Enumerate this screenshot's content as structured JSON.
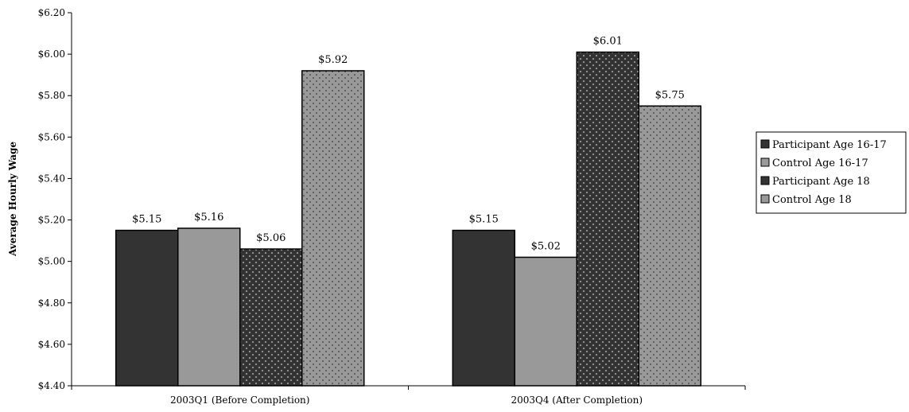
{
  "chart_data": {
    "type": "bar",
    "title": "",
    "xlabel": "",
    "ylabel": "Average Hourly Wage",
    "ylim": [
      4.4,
      6.2
    ],
    "ytick_step": 0.2,
    "ytick_labels": [
      "$4.40",
      "$4.60",
      "$4.80",
      "$5.00",
      "$5.20",
      "$5.40",
      "$5.60",
      "$5.80",
      "$6.00",
      "$6.20"
    ],
    "categories": [
      "2003Q1 (Before Completion)",
      "2003Q4 (After Completion)"
    ],
    "legend_position": "right",
    "grid": false,
    "series": [
      {
        "name": "Participant Age 16-17",
        "values": [
          5.15,
          5.15
        ],
        "labels": [
          "$5.15",
          "$5.15"
        ],
        "color": "#333333",
        "pattern": "solid"
      },
      {
        "name": "Control Age 16-17",
        "values": [
          5.16,
          5.02
        ],
        "labels": [
          "$5.16",
          "$5.02"
        ],
        "color": "#999999",
        "pattern": "solid"
      },
      {
        "name": "Participant Age 18",
        "values": [
          5.06,
          6.01
        ],
        "labels": [
          "$5.06",
          "$6.01"
        ],
        "color": "#333333",
        "pattern": "dotted"
      },
      {
        "name": "Control Age 18",
        "values": [
          5.92,
          5.75
        ],
        "labels": [
          "$5.92",
          "$5.75"
        ],
        "color": "#999999",
        "pattern": "dotted"
      }
    ]
  }
}
